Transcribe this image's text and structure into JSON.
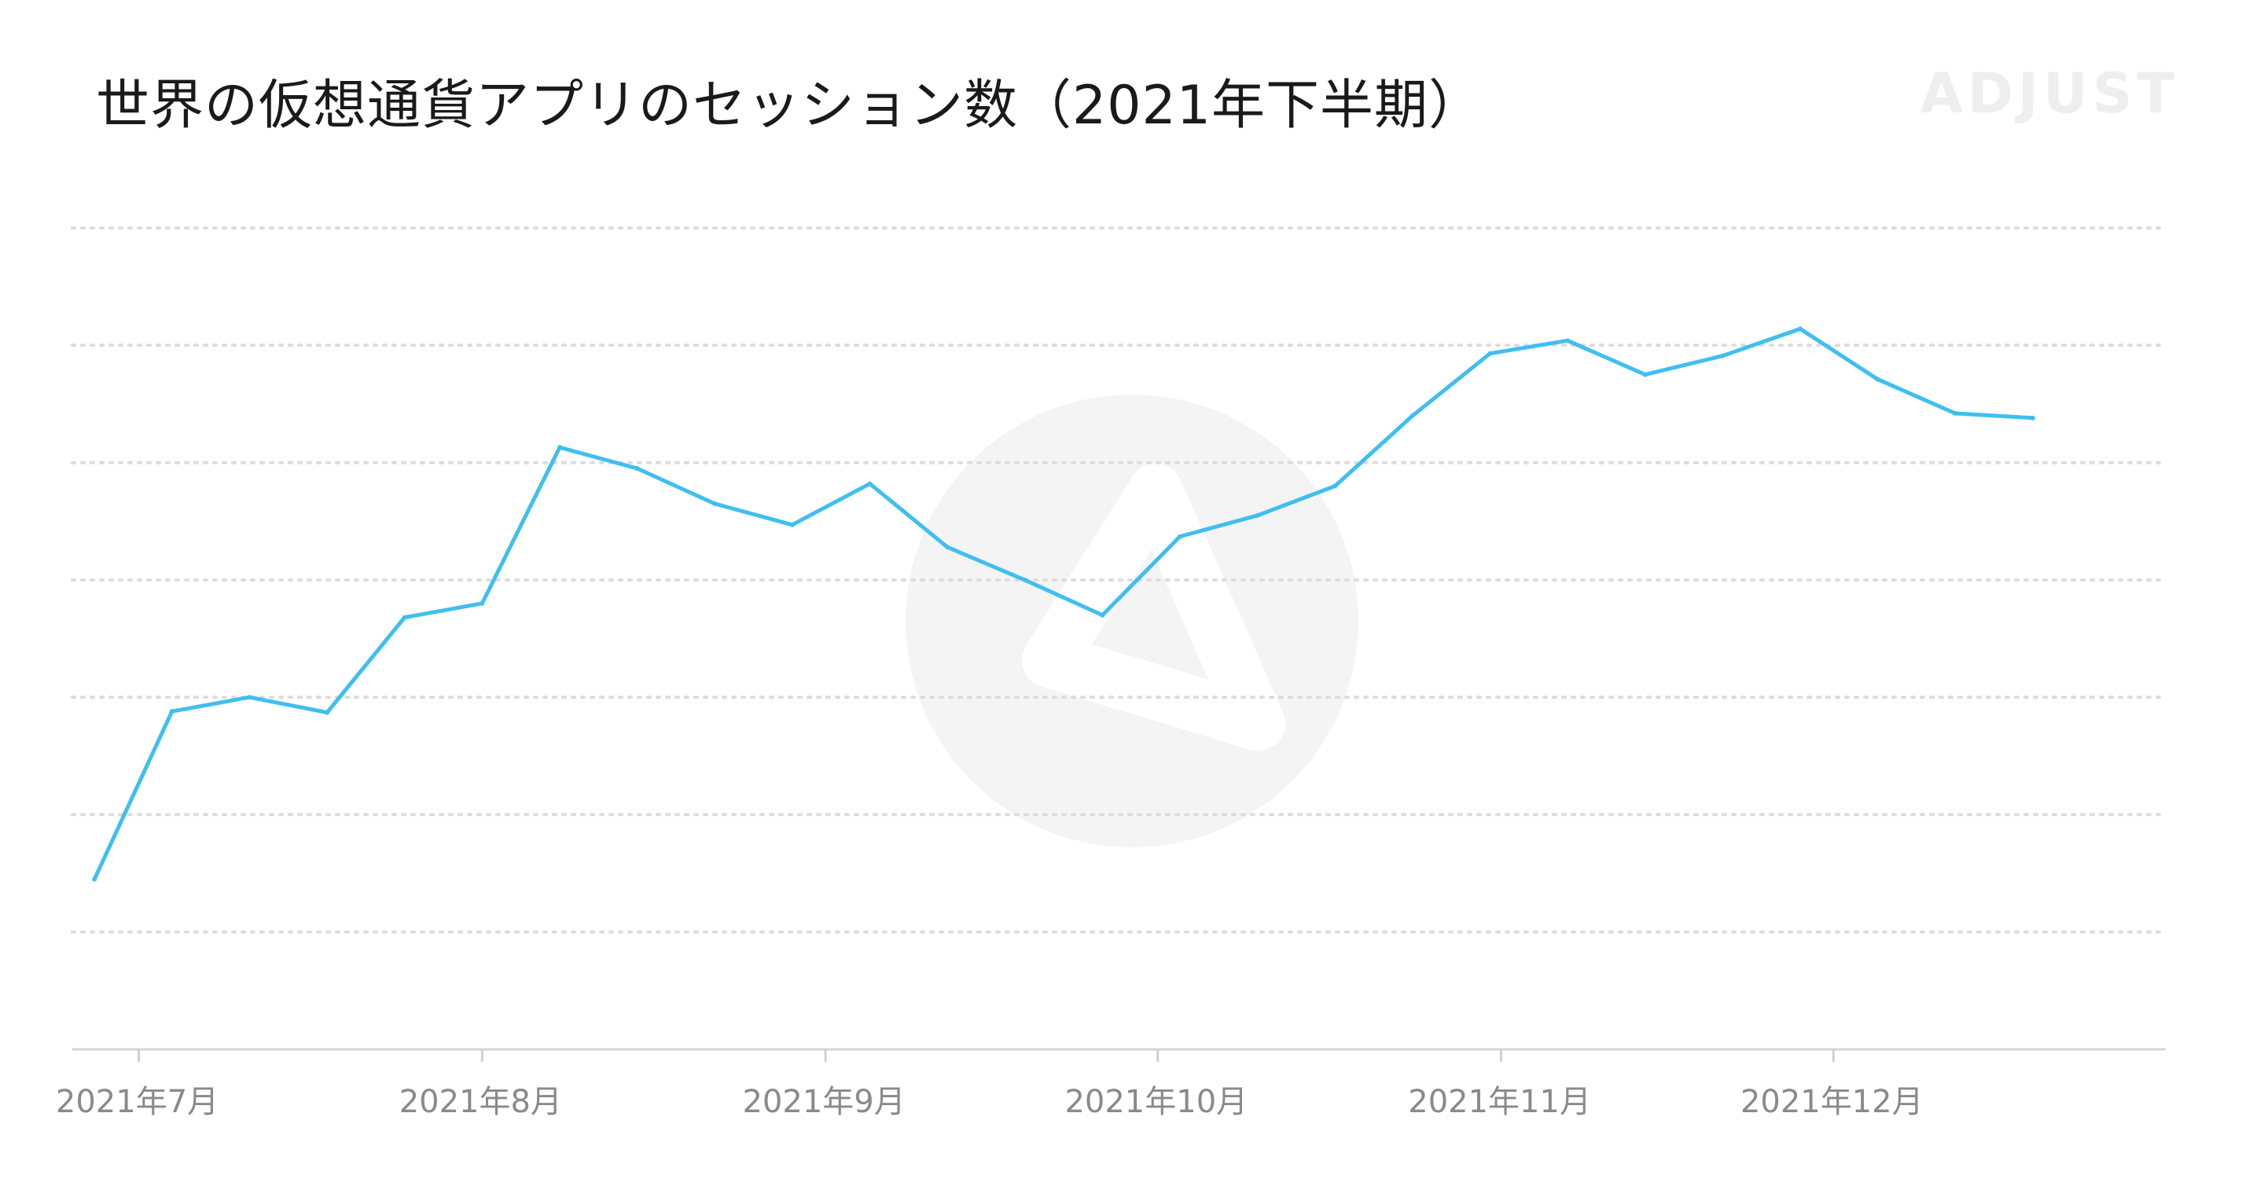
{
  "brand": "ADJUST",
  "chart_data": {
    "type": "line",
    "title": "世界の仮想通貨アプリのセッション数（2021年下半期）",
    "xlabel": "",
    "ylabel": "",
    "x_range": [
      "2021-06-25",
      "2021-12-31"
    ],
    "ticks": [
      {
        "date": "2021-07-01",
        "label": "2021年7月"
      },
      {
        "date": "2021-08-01",
        "label": "2021年8月"
      },
      {
        "date": "2021-09-01",
        "label": "2021年9月"
      },
      {
        "date": "2021-10-01",
        "label": "2021年10月"
      },
      {
        "date": "2021-11-01",
        "label": "2021年11月"
      },
      {
        "date": "2021-12-01",
        "label": "2021年12月"
      }
    ],
    "ylim": [
      0,
      7
    ],
    "grid": true,
    "line_color": "#3fbfef",
    "series": [
      {
        "x": [
          "2021-06-27",
          "2021-07-04",
          "2021-07-11",
          "2021-07-18",
          "2021-07-25",
          "2021-08-01",
          "2021-08-08",
          "2021-08-15",
          "2021-08-22",
          "2021-08-29",
          "2021-09-05",
          "2021-09-12",
          "2021-09-19",
          "2021-09-26",
          "2021-10-03",
          "2021-10-10",
          "2021-10-17",
          "2021-10-24",
          "2021-10-31",
          "2021-11-07",
          "2021-11-14",
          "2021-11-21",
          "2021-11-28",
          "2021-12-05",
          "2021-12-12",
          "2021-12-19"
        ],
        "values": [
          1.45,
          2.88,
          3.0,
          2.87,
          3.68,
          3.8,
          5.13,
          4.95,
          4.65,
          4.47,
          4.82,
          4.28,
          4.0,
          3.7,
          4.37,
          4.55,
          4.8,
          5.4,
          5.93,
          6.04,
          5.75,
          5.91,
          6.14,
          5.71,
          5.42,
          5.38
        ]
      }
    ],
    "background_logo": "adjust-logo-watermark"
  }
}
